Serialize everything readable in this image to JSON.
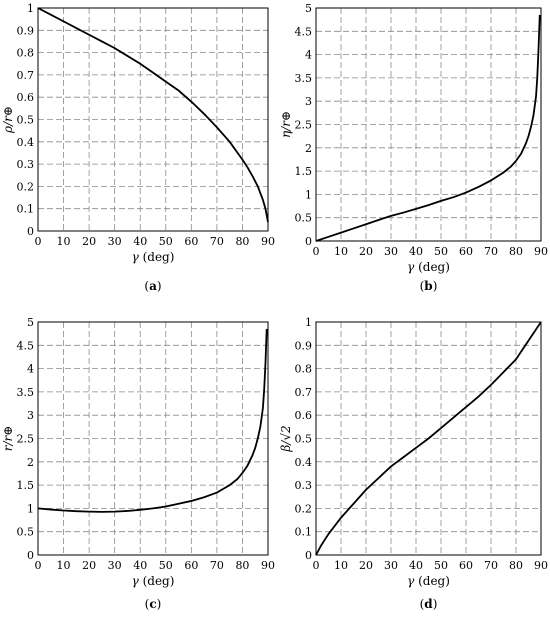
{
  "chart_data": [
    {
      "type": "line",
      "panel": "a",
      "caption_letter": "a",
      "xlabel_symbol": "γ",
      "xlabel_unit": "(deg)",
      "ylabel": "ρ/r⊕",
      "xlim": [
        0,
        90
      ],
      "ylim": [
        0,
        1
      ],
      "x_ticks": [
        "0",
        "10",
        "20",
        "30",
        "40",
        "50",
        "60",
        "70",
        "80",
        "90"
      ],
      "y_ticks": [
        "0",
        "0.1",
        "0.2",
        "0.3",
        "0.4",
        "0.5",
        "0.6",
        "0.7",
        "0.8",
        "0.9",
        "1"
      ],
      "grid": true,
      "x": [
        0,
        5,
        10,
        15,
        20,
        25,
        30,
        35,
        40,
        45,
        50,
        55,
        60,
        65,
        70,
        75,
        80,
        82,
        84,
        86,
        88,
        89,
        90
      ],
      "y": [
        1.0,
        0.97,
        0.94,
        0.91,
        0.88,
        0.85,
        0.82,
        0.785,
        0.75,
        0.71,
        0.67,
        0.63,
        0.58,
        0.525,
        0.465,
        0.4,
        0.32,
        0.285,
        0.245,
        0.2,
        0.14,
        0.1,
        0.04
      ]
    },
    {
      "type": "line",
      "panel": "b",
      "caption_letter": "b",
      "xlabel_symbol": "γ",
      "xlabel_unit": "(deg)",
      "ylabel": "η/r⊕",
      "xlim": [
        0,
        90
      ],
      "ylim": [
        0,
        5
      ],
      "x_ticks": [
        "0",
        "10",
        "20",
        "30",
        "40",
        "50",
        "60",
        "70",
        "80",
        "90"
      ],
      "y_ticks": [
        "0",
        "0.5",
        "1",
        "1.5",
        "2",
        "2.5",
        "3",
        "3.5",
        "4",
        "4.5",
        "5"
      ],
      "grid": true,
      "x": [
        0,
        5,
        10,
        15,
        20,
        25,
        30,
        35,
        40,
        45,
        50,
        55,
        60,
        65,
        70,
        75,
        78,
        80,
        82,
        84,
        85,
        86,
        87,
        88,
        88.5,
        89,
        89.5
      ],
      "y": [
        0.0,
        0.09,
        0.18,
        0.27,
        0.36,
        0.45,
        0.54,
        0.61,
        0.69,
        0.77,
        0.86,
        0.94,
        1.04,
        1.16,
        1.3,
        1.47,
        1.6,
        1.72,
        1.87,
        2.1,
        2.25,
        2.45,
        2.7,
        3.1,
        3.5,
        4.1,
        4.85
      ]
    },
    {
      "type": "line",
      "panel": "c",
      "caption_letter": "c",
      "xlabel_symbol": "γ",
      "xlabel_unit": "(deg)",
      "ylabel": "r/r⊕",
      "xlim": [
        0,
        90
      ],
      "ylim": [
        0,
        5
      ],
      "x_ticks": [
        "0",
        "10",
        "20",
        "30",
        "40",
        "50",
        "60",
        "70",
        "80",
        "90"
      ],
      "y_ticks": [
        "0",
        "0.5",
        "1",
        "1.5",
        "2",
        "2.5",
        "3",
        "3.5",
        "4",
        "4.5",
        "5"
      ],
      "grid": true,
      "x": [
        0,
        5,
        10,
        15,
        20,
        25,
        30,
        35,
        40,
        45,
        50,
        55,
        60,
        65,
        70,
        75,
        78,
        80,
        82,
        84,
        85,
        86,
        87,
        88,
        88.5,
        89,
        89.5
      ],
      "y": [
        1.0,
        0.975,
        0.955,
        0.94,
        0.93,
        0.925,
        0.93,
        0.945,
        0.97,
        1.0,
        1.04,
        1.1,
        1.16,
        1.24,
        1.34,
        1.5,
        1.63,
        1.76,
        1.92,
        2.15,
        2.3,
        2.5,
        2.75,
        3.15,
        3.55,
        4.1,
        4.85
      ]
    },
    {
      "type": "line",
      "panel": "d",
      "caption_letter": "d",
      "xlabel_symbol": "γ",
      "xlabel_unit": "(deg)",
      "ylabel": "β/√2",
      "xlim": [
        0,
        90
      ],
      "ylim": [
        0,
        1
      ],
      "x_ticks": [
        "0",
        "10",
        "20",
        "30",
        "40",
        "50",
        "60",
        "70",
        "80",
        "90"
      ],
      "y_ticks": [
        "0",
        "0.1",
        "0.2",
        "0.3",
        "0.4",
        "0.5",
        "0.6",
        "0.7",
        "0.8",
        "0.9",
        "1"
      ],
      "grid": true,
      "x": [
        0,
        2,
        5,
        10,
        15,
        20,
        25,
        30,
        35,
        40,
        45,
        50,
        55,
        60,
        65,
        70,
        75,
        80,
        85,
        90
      ],
      "y": [
        0.0,
        0.04,
        0.09,
        0.16,
        0.22,
        0.28,
        0.33,
        0.38,
        0.42,
        0.46,
        0.5,
        0.545,
        0.59,
        0.635,
        0.68,
        0.73,
        0.785,
        0.84,
        0.92,
        1.0
      ]
    }
  ]
}
